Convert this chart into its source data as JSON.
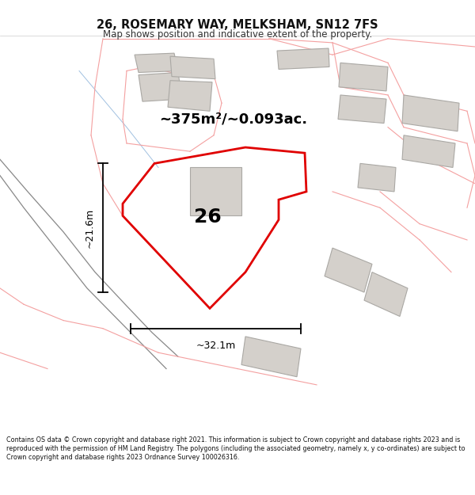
{
  "title": "26, ROSEMARY WAY, MELKSHAM, SN12 7FS",
  "subtitle": "Map shows position and indicative extent of the property.",
  "footer": "Contains OS data © Crown copyright and database right 2021. This information is subject to Crown copyright and database rights 2023 and is reproduced with the permission of HM Land Registry. The polygons (including the associated geometry, namely x, y co-ordinates) are subject to Crown copyright and database rights 2023 Ordnance Survey 100026316.",
  "area_text": "~375m²/~0.093ac.",
  "dim_h": "~21.6m",
  "dim_w": "~32.1m",
  "plot_label": "26",
  "bg_color": "#ffffff",
  "map_bg": "#f8f7f5",
  "title_color": "#111111",
  "subtitle_color": "#333333",
  "footer_color": "#111111",
  "red_line_color": "#e00000",
  "pink_line_color": "#f4a0a0",
  "pink_fill_color": "#fce8e8",
  "blue_line_color": "#a0c0e0",
  "gray_line_color": "#b8b8b8",
  "dark_gray_line": "#888888",
  "building_fill": "#d4d0cb",
  "building_edge": "#aaa8a4",
  "lot_fill": "#e8e5e0",
  "lot_edge": "#c8c5c0"
}
